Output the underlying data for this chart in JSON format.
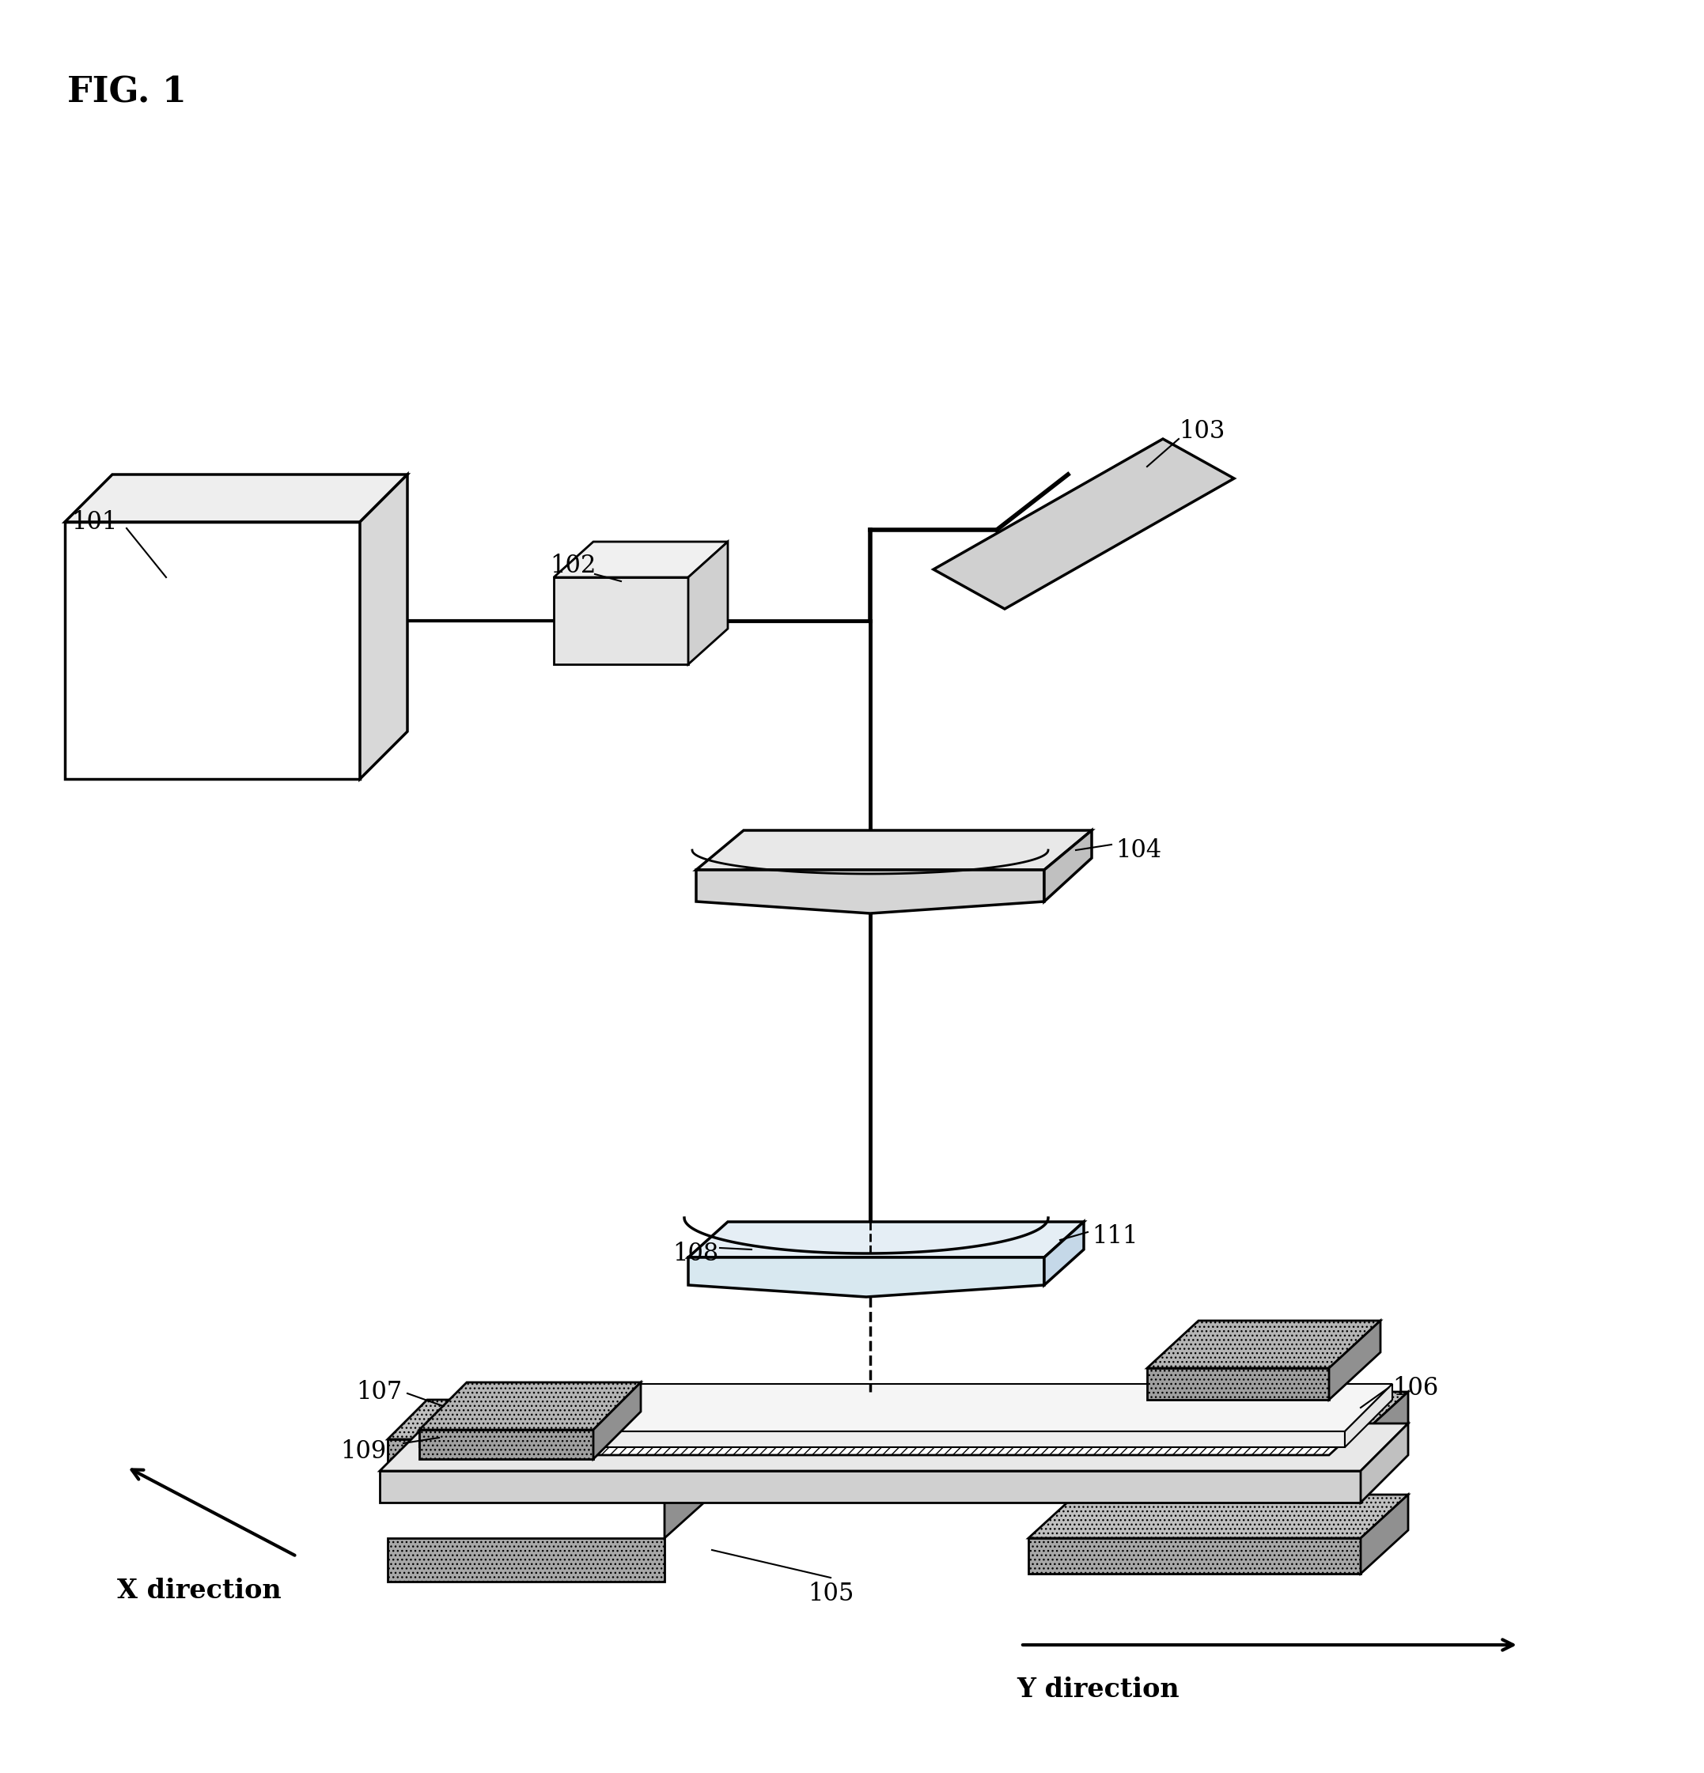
{
  "fig_label": "FIG. 1",
  "bg": "#ffffff",
  "lbl_101": "101",
  "lbl_102": "102",
  "lbl_103": "103",
  "lbl_104": "104",
  "lbl_105": "105",
  "lbl_106": "106",
  "lbl_107": "107",
  "lbl_108": "108",
  "lbl_109": "109",
  "lbl_111": "111",
  "x_dir": "X direction",
  "y_dir": "Y direction",
  "gray_lt": "#d8d8d8",
  "gray_md": "#b0b0b0",
  "gray_dk": "#888888",
  "gray_stg": "#aaaaaa",
  "white": "#ffffff",
  "lens_fc": "#e8eef4",
  "hatch_gray": "#c0c0c0"
}
